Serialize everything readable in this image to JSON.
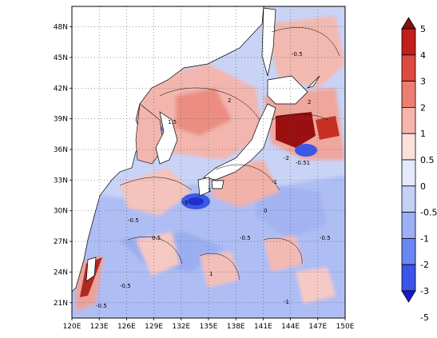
{
  "map": {
    "x_ticks": [
      "120E",
      "123E",
      "126E",
      "129E",
      "132E",
      "135E",
      "138E",
      "141E",
      "144E",
      "147E",
      "150E"
    ],
    "y_ticks": [
      "21N",
      "24N",
      "27N",
      "30N",
      "33N",
      "36N",
      "39N",
      "42N",
      "45N",
      "48N"
    ],
    "lon_range": [
      120,
      150
    ],
    "lat_range": [
      19.5,
      50
    ],
    "gridlines": true
  },
  "colorbar": {
    "labels": [
      "-5",
      "-3",
      "-2",
      "-1",
      "-0.5",
      "0",
      "0.5",
      "1",
      "2",
      "3",
      "4",
      "5"
    ],
    "colors": [
      "#1a1acc",
      "#3a55e8",
      "#6a86f0",
      "#9db0f5",
      "#c5d0f7",
      "#e4e9fb",
      "#fbe0dc",
      "#f6b5ad",
      "#ec7f73",
      "#dd4a40",
      "#c0201c",
      "#8a0f0f"
    ]
  },
  "contour_labels": [
    "-0.5",
    "0.5",
    "1",
    "2",
    "-1",
    "-2",
    "-3",
    "0",
    "-0.51",
    "1.5"
  ]
}
